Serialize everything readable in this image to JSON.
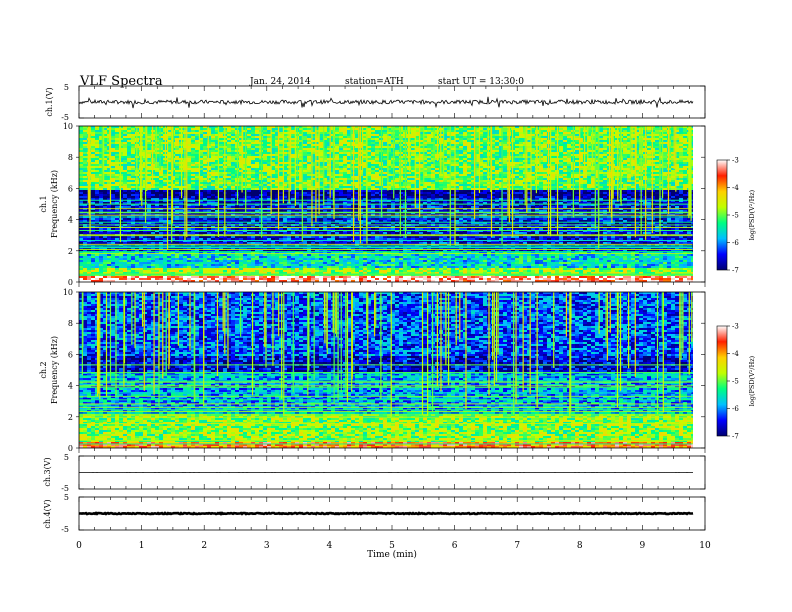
{
  "header": {
    "title": "VLF Spectra",
    "date": "Jan. 24, 2014",
    "station": "station=ATH",
    "start": "start  UT =  13:30:0"
  },
  "chart_data": [
    {
      "type": "line",
      "panel": "ch1-waveform",
      "ylabel": "ch.1(V)",
      "ylim": [
        -5,
        5
      ],
      "yticks": [
        {
          "value": 5,
          "label": "5"
        },
        {
          "value": -5,
          "label": "-5"
        }
      ],
      "xlim": [
        0,
        10
      ],
      "series": [
        {
          "mean": 0.0,
          "noise": 0.6,
          "spikes": 1.8
        }
      ]
    },
    {
      "type": "heatmap",
      "panel": "ch1-spectrogram",
      "ylabel_lines": [
        "ch.1",
        "Frequency (kHz)"
      ],
      "xlim": [
        0,
        9.8
      ],
      "ylim": [
        0,
        10
      ],
      "yticks": [
        0,
        2,
        4,
        6,
        8,
        10
      ],
      "colorbar": {
        "label": "log(PSD(V²/Hz)",
        "range": [
          -7,
          -3
        ],
        "ticks": [
          -3,
          -4,
          -5,
          -6,
          -7
        ],
        "colors": [
          "#000070",
          "#0000ff",
          "#00c0ff",
          "#00ff80",
          "#c0ff00",
          "#ffd000",
          "#ff2000",
          "#ffffff"
        ]
      },
      "regions": [
        {
          "f_from": 0,
          "f_to": 0.5,
          "log_psd": -3.2
        },
        {
          "f_from": 0.5,
          "f_to": 1.0,
          "log_psd": -4.8
        },
        {
          "f_from": 1.0,
          "f_to": 2.0,
          "log_psd": -5.6
        },
        {
          "f_from": 2.0,
          "f_to": 5.5,
          "log_psd": -6.5
        },
        {
          "f_from": 5.5,
          "f_to": 6.0,
          "log_psd": -6.9
        },
        {
          "f_from": 6.0,
          "f_to": 10.0,
          "log_psd": -5.0
        }
      ],
      "sferic_lines_per_min": 13
    },
    {
      "type": "heatmap",
      "panel": "ch2-spectrogram",
      "ylabel_lines": [
        "ch.2",
        "Frequency (kHz)"
      ],
      "xlim": [
        0,
        9.8
      ],
      "ylim": [
        0,
        10
      ],
      "yticks": [
        0,
        2,
        4,
        6,
        8,
        10
      ],
      "colorbar": {
        "label": "log(PSD(V²/Hz)",
        "range": [
          -7,
          -3
        ],
        "ticks": [
          -3,
          -4,
          -5,
          -6,
          -7
        ],
        "colors": [
          "#000070",
          "#0000ff",
          "#00c0ff",
          "#00ff80",
          "#c0ff00",
          "#ffd000",
          "#ff2000",
          "#ffffff"
        ]
      },
      "regions": [
        {
          "f_from": 0,
          "f_to": 0.5,
          "log_psd": -3.8
        },
        {
          "f_from": 0.5,
          "f_to": 2.2,
          "log_psd": -4.9
        },
        {
          "f_from": 2.2,
          "f_to": 5.0,
          "log_psd": -5.9
        },
        {
          "f_from": 5.0,
          "f_to": 6.0,
          "log_psd": -6.6
        },
        {
          "f_from": 6.0,
          "f_to": 10.0,
          "log_psd": -6.2
        }
      ],
      "sferic_lines_per_min": 11
    },
    {
      "type": "line",
      "panel": "ch3-waveform",
      "ylabel": "ch.3(V)",
      "ylim": [
        -5,
        5
      ],
      "yticks": [
        {
          "value": 5,
          "label": "5"
        },
        {
          "value": -5,
          "label": "-5"
        }
      ],
      "xlim": [
        0,
        10
      ],
      "series": [
        {
          "mean": 0.0,
          "noise": 0.02,
          "spikes": 0
        }
      ]
    },
    {
      "type": "line",
      "panel": "ch4-waveform",
      "ylabel": "ch.4(V)",
      "ylim": [
        -5,
        5
      ],
      "yticks": [
        {
          "value": 5,
          "label": "5"
        },
        {
          "value": -5,
          "label": "-5"
        }
      ],
      "xlim": [
        0,
        10
      ],
      "series": [
        {
          "mean": 0.0,
          "noise": 0.15,
          "spikes": 0
        }
      ]
    }
  ],
  "xaxis": {
    "label": "Time (min)",
    "ticks": [
      {
        "value": 0,
        "label": "0"
      },
      {
        "value": 1,
        "label": "1"
      },
      {
        "value": 2,
        "label": "2"
      },
      {
        "value": 3,
        "label": "3"
      },
      {
        "value": 4,
        "label": "4"
      },
      {
        "value": 5,
        "label": "5"
      },
      {
        "value": 6,
        "label": "6"
      },
      {
        "value": 7,
        "label": "7"
      },
      {
        "value": 8,
        "label": "8"
      },
      {
        "value": 9,
        "label": "9"
      },
      {
        "value": 10,
        "label": "10"
      }
    ]
  }
}
